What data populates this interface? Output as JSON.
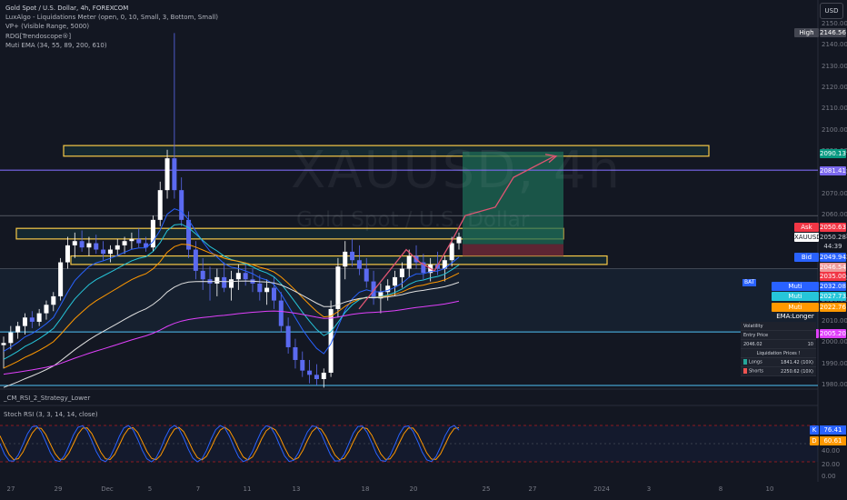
{
  "header": {
    "title": "Gold Spot / U.S. Dollar, 4h, FOREXCOM",
    "indicators": [
      "LuxAlgo - Liquidations Meter (open, 0, 10, Small, 3, Bottom, Small)",
      "VP+ (Visible Range, 5000)",
      "RDG[Trendoscope®]",
      "Muti EMA (34, 55, 89, 200, 610)"
    ],
    "currency_button": "USD"
  },
  "watermark": {
    "symbol": "XAUUSD, 4h",
    "name": "Gold Spot / U.S. Dollar"
  },
  "chart_data": {
    "type": "candlestick",
    "title": "Gold Spot / U.S. Dollar, 4h, FOREXCOM",
    "symbol": "XAUUSD",
    "y_axis": {
      "ticks": [
        1980,
        1990,
        2000,
        2010,
        2020,
        2030,
        2040,
        2050,
        2060,
        2070,
        2080,
        2090,
        2100,
        2110,
        2120,
        2130,
        2140,
        2150
      ],
      "ylim": [
        1980,
        2152
      ]
    },
    "x_axis": {
      "tick_labels": [
        "27",
        "29",
        "Dec",
        "5",
        "7",
        "11",
        "13",
        "18",
        "20",
        "25",
        "27",
        "2024",
        "3",
        "8",
        "10"
      ]
    },
    "price_labels": [
      {
        "label": "High",
        "value": "2146.56"
      },
      {
        "value": "2090.13"
      },
      {
        "value": "2081.41"
      },
      {
        "label": "Ask",
        "value": "2050.63"
      },
      {
        "label": "XAUUSD",
        "value": "2050.28",
        "countdown": "44:39"
      },
      {
        "label": "Bid",
        "value": "2049.94"
      },
      {
        "value": "2046.54"
      },
      {
        "value": "2035.00"
      },
      {
        "label": "Muti EMA:Shortest",
        "value": "2032.08"
      },
      {
        "label": "Muti EMA:Short",
        "value": "2027.73"
      },
      {
        "label": "Muti EMA:Longer",
        "value": "2022.76"
      },
      {
        "label": "Muti EMA:Longest",
        "value": "2005.20"
      }
    ],
    "candles": [
      [
        1999,
        2003,
        1988,
        2000
      ],
      [
        2000,
        2008,
        1997,
        2005
      ],
      [
        2005,
        2010,
        2002,
        2008
      ],
      [
        2008,
        2014,
        2004,
        2012
      ],
      [
        2012,
        2015,
        2007,
        2010
      ],
      [
        2010,
        2016,
        2008,
        2014
      ],
      [
        2014,
        2020,
        2011,
        2018
      ],
      [
        2018,
        2024,
        2015,
        2022
      ],
      [
        2022,
        2040,
        2020,
        2038
      ],
      [
        2038,
        2050,
        2035,
        2046
      ],
      [
        2046,
        2052,
        2040,
        2048
      ],
      [
        2048,
        2053,
        2043,
        2045
      ],
      [
        2045,
        2050,
        2041,
        2047
      ],
      [
        2047,
        2051,
        2042,
        2044
      ],
      [
        2044,
        2048,
        2039,
        2042
      ],
      [
        2042,
        2046,
        2038,
        2044
      ],
      [
        2044,
        2049,
        2041,
        2046
      ],
      [
        2046,
        2050,
        2042,
        2048
      ],
      [
        2048,
        2052,
        2044,
        2049
      ],
      [
        2049,
        2054,
        2045,
        2047
      ],
      [
        2047,
        2050,
        2043,
        2045
      ],
      [
        2045,
        2060,
        2043,
        2058
      ],
      [
        2058,
        2076,
        2055,
        2072
      ],
      [
        2072,
        2091,
        2068,
        2087
      ],
      [
        2087,
        2146,
        2068,
        2072
      ],
      [
        2072,
        2078,
        2055,
        2058
      ],
      [
        2058,
        2062,
        2040,
        2044
      ],
      [
        2044,
        2048,
        2030,
        2034
      ],
      [
        2034,
        2040,
        2025,
        2030
      ],
      [
        2030,
        2036,
        2020,
        2028
      ],
      [
        2028,
        2035,
        2022,
        2031
      ],
      [
        2031,
        2038,
        2024,
        2026
      ],
      [
        2026,
        2034,
        2020,
        2030
      ],
      [
        2030,
        2037,
        2025,
        2033
      ],
      [
        2033,
        2038,
        2027,
        2030
      ],
      [
        2030,
        2035,
        2024,
        2028
      ],
      [
        2028,
        2032,
        2020,
        2024
      ],
      [
        2024,
        2030,
        2018,
        2026
      ],
      [
        2026,
        2031,
        2016,
        2020
      ],
      [
        2020,
        2024,
        2005,
        2008
      ],
      [
        2008,
        2012,
        1995,
        1998
      ],
      [
        1998,
        2002,
        1988,
        1992
      ],
      [
        1992,
        1996,
        1984,
        1987
      ],
      [
        1987,
        1992,
        1981,
        1985
      ],
      [
        1985,
        1990,
        1980,
        1983
      ],
      [
        1983,
        1988,
        1979,
        1986
      ],
      [
        1986,
        2020,
        1984,
        2016
      ],
      [
        2016,
        2040,
        2012,
        2036
      ],
      [
        2036,
        2048,
        2030,
        2043
      ],
      [
        2043,
        2049,
        2036,
        2039
      ],
      [
        2039,
        2046,
        2032,
        2035
      ],
      [
        2035,
        2040,
        2026,
        2029
      ],
      [
        2029,
        2034,
        2018,
        2021
      ],
      [
        2021,
        2028,
        2014,
        2024
      ],
      [
        2024,
        2030,
        2020,
        2027
      ],
      [
        2027,
        2034,
        2022,
        2031
      ],
      [
        2031,
        2038,
        2026,
        2035
      ],
      [
        2035,
        2044,
        2031,
        2041
      ],
      [
        2041,
        2046,
        2035,
        2038
      ],
      [
        2038,
        2042,
        2030,
        2033
      ],
      [
        2033,
        2040,
        2029,
        2037
      ],
      [
        2037,
        2043,
        2032,
        2035
      ],
      [
        2035,
        2041,
        2029,
        2039
      ],
      [
        2039,
        2050,
        2036,
        2047
      ],
      [
        2047,
        2052,
        2044,
        2050
      ]
    ],
    "zones": [
      {
        "type": "supply",
        "top": 2093,
        "bottom": 2088
      },
      {
        "type": "resistance",
        "top": 2054,
        "bottom": 2049
      },
      {
        "type": "support",
        "top": 2041,
        "bottom": 2037
      }
    ],
    "horizontal_lines": [
      2081.41,
      2060,
      2035,
      2005.2,
      1980
    ],
    "position": {
      "entry": 2046.54,
      "target": 2090.13,
      "stop": 2041
    },
    "projection_path": [
      [
        2016,
        2046
      ],
      [
        2030,
        2052
      ],
      [
        2045,
        2060
      ],
      [
        2060,
        2072
      ],
      [
        2075,
        2085
      ]
    ],
    "emas": [
      {
        "name": "EMA 34",
        "color": "#2962ff"
      },
      {
        "name": "EMA 55",
        "color": "#26c6da"
      },
      {
        "name": "EMA 89",
        "color": "#ff9800"
      },
      {
        "name": "EMA 200",
        "color": "#e0e0e0"
      },
      {
        "name": "EMA 610",
        "color": "#e040fb"
      }
    ],
    "liquidations_table": {
      "volatility_label": "Volatility",
      "entry_price_label": "Entry Price",
      "entry_price": "2046.02",
      "leverage": "10",
      "liquidation_title": "Liquidation Prices !",
      "longs_label": "Longs",
      "longs_value": "1841.42 (10X)",
      "shorts_label": "Shorts",
      "shorts_value": "2250.62 (10X)"
    }
  },
  "lower_panes": {
    "rsi_strategy_label": "_CM_RSI_2_Strategy_Lower",
    "stoch_label": "Stoch RSI (3, 3, 14, 14, close)",
    "stoch_k_label": "K",
    "stoch_k_value": "76.41",
    "stoch_d_label": "D",
    "stoch_d_value": "60.61",
    "stoch_ticks": [
      "40.00",
      "20.00",
      "0.00"
    ]
  },
  "colors": {
    "background": "#131722",
    "bull": "#ffffff",
    "bear": "#5b6af0",
    "supply_zone": "#f7c948",
    "purple_line": "#7b68ee",
    "projection": "#e05573",
    "target_fill": "#1e6b56",
    "stop_fill": "#6b2836"
  }
}
